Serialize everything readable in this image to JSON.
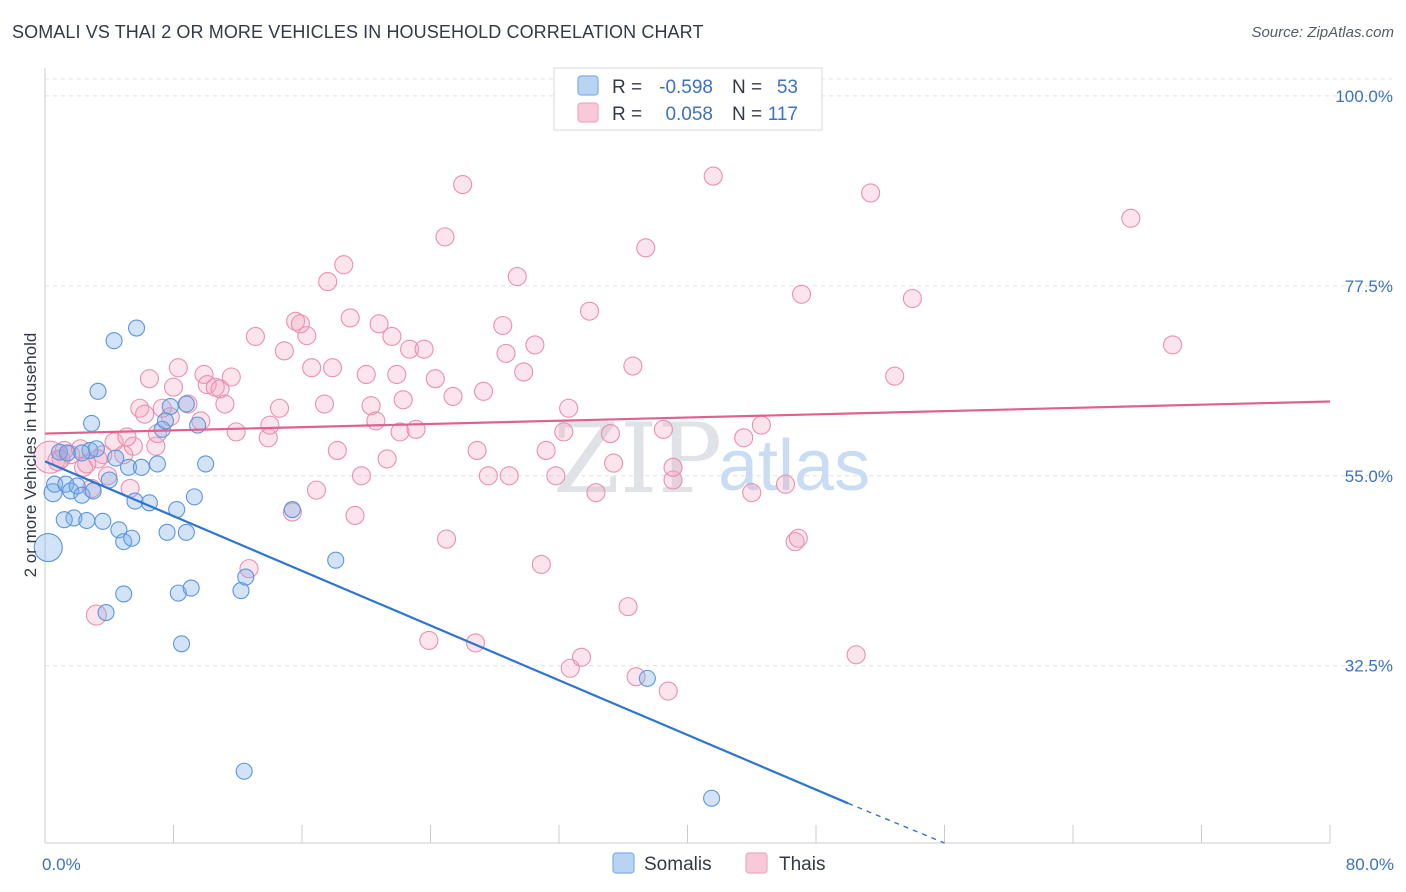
{
  "header": {
    "title": "SOMALI VS THAI 2 OR MORE VEHICLES IN HOUSEHOLD CORRELATION CHART",
    "source": "Source: ZipAtlas.com"
  },
  "watermark": {
    "zip": "ZIP",
    "atlas": "atlas"
  },
  "colors": {
    "somali": "#7eaee8",
    "somali_line": "#2e74d1",
    "thai": "#f2a6c0",
    "thai_line": "#e2608f",
    "tick_label": "#3b72c4"
  },
  "chart_data": {
    "type": "scatter",
    "title": "SOMALI VS THAI 2 OR MORE VEHICLES IN HOUSEHOLD CORRELATION CHART",
    "xlabel": "",
    "ylabel": "2 or more Vehicles in Household",
    "xlim": [
      0,
      80
    ],
    "ylim": [
      11.5,
      102
    ],
    "x_tick_labels": [
      "0.0%",
      "80.0%"
    ],
    "y_ticks": [
      32.5,
      55.0,
      77.5,
      100.0
    ],
    "y_tick_labels": [
      "32.5%",
      "55.0%",
      "77.5%",
      "100.0%"
    ],
    "grid": true,
    "legend": {
      "placement": "top-center",
      "rows": [
        {
          "r_label": "R =",
          "r_value": "-0.598",
          "n_label": "N =",
          "n_value": "53"
        },
        {
          "r_label": "R =",
          "r_value": "0.058",
          "n_label": "N =",
          "n_value": "117"
        }
      ]
    },
    "series": [
      {
        "name": "Somalis",
        "color": "#7eaee8",
        "trend": {
          "x": [
            0,
            50
          ],
          "y": [
            56.7,
            16.2
          ],
          "dashed_to": [
            56,
            11.5
          ]
        },
        "points": [
          [
            0.2,
            46.5,
            14
          ],
          [
            0.5,
            53.0,
            9
          ],
          [
            0.6,
            54.0,
            8
          ],
          [
            0.9,
            57.8,
            8
          ],
          [
            1.3,
            54.0,
            8
          ],
          [
            1.4,
            57.7,
            8
          ],
          [
            1.6,
            53.2,
            8
          ],
          [
            1.8,
            50.0,
            8
          ],
          [
            2.0,
            53.8,
            8
          ],
          [
            2.3,
            52.7,
            8
          ],
          [
            2.6,
            49.7,
            8
          ],
          [
            2.8,
            58.0,
            8
          ],
          [
            3.0,
            53.2,
            8
          ],
          [
            2.9,
            61.2,
            8
          ],
          [
            3.2,
            58.2,
            8
          ],
          [
            3.3,
            65.0,
            8
          ],
          [
            3.6,
            49.6,
            8
          ],
          [
            3.8,
            38.8,
            8
          ],
          [
            4.0,
            54.5,
            8
          ],
          [
            4.4,
            57.1,
            8
          ],
          [
            4.6,
            48.6,
            8
          ],
          [
            4.3,
            71.0,
            8
          ],
          [
            4.9,
            47.2,
            8
          ],
          [
            4.9,
            41.0,
            8
          ],
          [
            5.4,
            47.6,
            8
          ],
          [
            5.2,
            56.0,
            8
          ],
          [
            5.6,
            52.0,
            8
          ],
          [
            5.7,
            72.5,
            8
          ],
          [
            6.0,
            56.0,
            8
          ],
          [
            6.5,
            51.8,
            8
          ],
          [
            7.0,
            56.4,
            8
          ],
          [
            7.3,
            60.5,
            8
          ],
          [
            7.6,
            48.3,
            8
          ],
          [
            7.8,
            63.2,
            8
          ],
          [
            8.2,
            51.0,
            8
          ],
          [
            8.3,
            41.1,
            8
          ],
          [
            8.5,
            35.1,
            8
          ],
          [
            8.8,
            48.3,
            8
          ],
          [
            9.1,
            41.7,
            8
          ],
          [
            9.3,
            52.5,
            8
          ],
          [
            9.5,
            61.0,
            8
          ],
          [
            10.0,
            56.4,
            8
          ],
          [
            12.2,
            41.4,
            8
          ],
          [
            12.5,
            43.0,
            8
          ],
          [
            12.4,
            20.0,
            8
          ],
          [
            15.4,
            51.0,
            8
          ],
          [
            18.1,
            45.0,
            8
          ],
          [
            37.5,
            31.0,
            8
          ],
          [
            41.5,
            16.8,
            8
          ],
          [
            8.8,
            63.5,
            8
          ],
          [
            7.5,
            61.5,
            8
          ],
          [
            2.3,
            57.7,
            8
          ],
          [
            1.2,
            49.8,
            8
          ]
        ]
      },
      {
        "name": "Thais",
        "color": "#f2a6c0",
        "trend": {
          "x": [
            0,
            80
          ],
          "y": [
            60.0,
            63.8
          ]
        },
        "points": [
          [
            0.3,
            57.2,
            16
          ],
          [
            0.8,
            56.8,
            10
          ],
          [
            1.2,
            58.0,
            9
          ],
          [
            1.6,
            57.5,
            9
          ],
          [
            2.2,
            58.2,
            9
          ],
          [
            2.4,
            56.0,
            9
          ],
          [
            2.9,
            53.5,
            9
          ],
          [
            3.2,
            38.5,
            10
          ],
          [
            3.6,
            57.5,
            9
          ],
          [
            3.9,
            55.0,
            9
          ],
          [
            4.3,
            59.0,
            9
          ],
          [
            4.9,
            57.5,
            9
          ],
          [
            5.3,
            53.5,
            9
          ],
          [
            5.5,
            58.5,
            9
          ],
          [
            5.9,
            63.0,
            9
          ],
          [
            6.2,
            62.3,
            9
          ],
          [
            6.5,
            66.5,
            9
          ],
          [
            6.9,
            58.5,
            9
          ],
          [
            7.0,
            60.0,
            9
          ],
          [
            7.3,
            63.0,
            9
          ],
          [
            7.8,
            62.0,
            9
          ],
          [
            8.0,
            65.5,
            9
          ],
          [
            8.3,
            67.8,
            9
          ],
          [
            8.9,
            63.5,
            9
          ],
          [
            9.7,
            61.5,
            9
          ],
          [
            9.9,
            67.0,
            9
          ],
          [
            10.1,
            65.8,
            9
          ],
          [
            10.6,
            65.5,
            9
          ],
          [
            10.9,
            65.3,
            9
          ],
          [
            11.2,
            63.5,
            9
          ],
          [
            11.6,
            66.7,
            9
          ],
          [
            11.9,
            60.2,
            9
          ],
          [
            12.7,
            44.0,
            9
          ],
          [
            13.1,
            71.5,
            9
          ],
          [
            13.9,
            59.5,
            9
          ],
          [
            14.0,
            61.0,
            9
          ],
          [
            14.6,
            63.0,
            9
          ],
          [
            14.9,
            69.8,
            9
          ],
          [
            15.4,
            50.7,
            9
          ],
          [
            15.6,
            73.3,
            9
          ],
          [
            15.9,
            73.0,
            9
          ],
          [
            16.3,
            71.6,
            9
          ],
          [
            16.6,
            67.8,
            9
          ],
          [
            16.9,
            53.3,
            9
          ],
          [
            17.4,
            63.5,
            9
          ],
          [
            17.6,
            78.0,
            9
          ],
          [
            17.9,
            67.8,
            9
          ],
          [
            18.2,
            58.0,
            9
          ],
          [
            18.6,
            80.0,
            9
          ],
          [
            19.0,
            73.7,
            9
          ],
          [
            19.3,
            50.3,
            9
          ],
          [
            19.7,
            55.0,
            9
          ],
          [
            20.0,
            67.0,
            9
          ],
          [
            20.3,
            63.3,
            9
          ],
          [
            20.6,
            61.5,
            9
          ],
          [
            20.8,
            73.0,
            9
          ],
          [
            21.3,
            57.0,
            9
          ],
          [
            21.6,
            71.5,
            9
          ],
          [
            21.9,
            67.0,
            9
          ],
          [
            22.1,
            60.2,
            9
          ],
          [
            22.3,
            64.0,
            9
          ],
          [
            22.7,
            70.0,
            9
          ],
          [
            23.1,
            60.5,
            9
          ],
          [
            23.6,
            70.0,
            9
          ],
          [
            23.9,
            35.5,
            9
          ],
          [
            24.3,
            66.5,
            9
          ],
          [
            24.9,
            83.3,
            9
          ],
          [
            25.0,
            47.5,
            9
          ],
          [
            25.4,
            64.4,
            9
          ],
          [
            26.0,
            89.5,
            9
          ],
          [
            26.8,
            35.2,
            9
          ],
          [
            26.9,
            58.0,
            9
          ],
          [
            27.3,
            65.0,
            9
          ],
          [
            27.6,
            55.0,
            9
          ],
          [
            28.5,
            72.8,
            9
          ],
          [
            28.7,
            69.5,
            9
          ],
          [
            28.9,
            55.0,
            9
          ],
          [
            29.4,
            78.6,
            9
          ],
          [
            29.8,
            67.3,
            9
          ],
          [
            30.5,
            70.5,
            9
          ],
          [
            30.9,
            44.5,
            9
          ],
          [
            31.2,
            58.0,
            9
          ],
          [
            31.8,
            55.0,
            9
          ],
          [
            32.3,
            60.2,
            9
          ],
          [
            32.6,
            63.0,
            9
          ],
          [
            32.7,
            32.2,
            9
          ],
          [
            33.4,
            33.5,
            9
          ],
          [
            33.9,
            74.5,
            9
          ],
          [
            34.3,
            53.0,
            9
          ],
          [
            35.2,
            60.0,
            9
          ],
          [
            35.4,
            56.5,
            9
          ],
          [
            36.3,
            39.5,
            9
          ],
          [
            36.6,
            68.0,
            9
          ],
          [
            36.8,
            31.2,
            9
          ],
          [
            37.4,
            82.0,
            9
          ],
          [
            38.5,
            60.5,
            9
          ],
          [
            38.8,
            29.5,
            9
          ],
          [
            39.1,
            54.5,
            9
          ],
          [
            39.1,
            56.0,
            9
          ],
          [
            41.6,
            90.5,
            9
          ],
          [
            43.5,
            59.5,
            9
          ],
          [
            44.0,
            53.0,
            9
          ],
          [
            44.6,
            61.0,
            9
          ],
          [
            46.1,
            54.0,
            9
          ],
          [
            46.7,
            47.2,
            9
          ],
          [
            46.9,
            47.6,
            9
          ],
          [
            47.1,
            76.5,
            9
          ],
          [
            50.5,
            33.8,
            9
          ],
          [
            51.4,
            88.5,
            9
          ],
          [
            52.9,
            66.8,
            9
          ],
          [
            54.0,
            76.0,
            9
          ],
          [
            67.6,
            85.5,
            9
          ],
          [
            70.2,
            70.5,
            9
          ],
          [
            3.3,
            57.0,
            9
          ],
          [
            1.0,
            57.0,
            9
          ],
          [
            2.6,
            56.4,
            9
          ],
          [
            5.1,
            59.6,
            9
          ]
        ]
      }
    ]
  },
  "bottom_legend": {
    "somali_label": "Somalis",
    "thai_label": "Thais"
  }
}
